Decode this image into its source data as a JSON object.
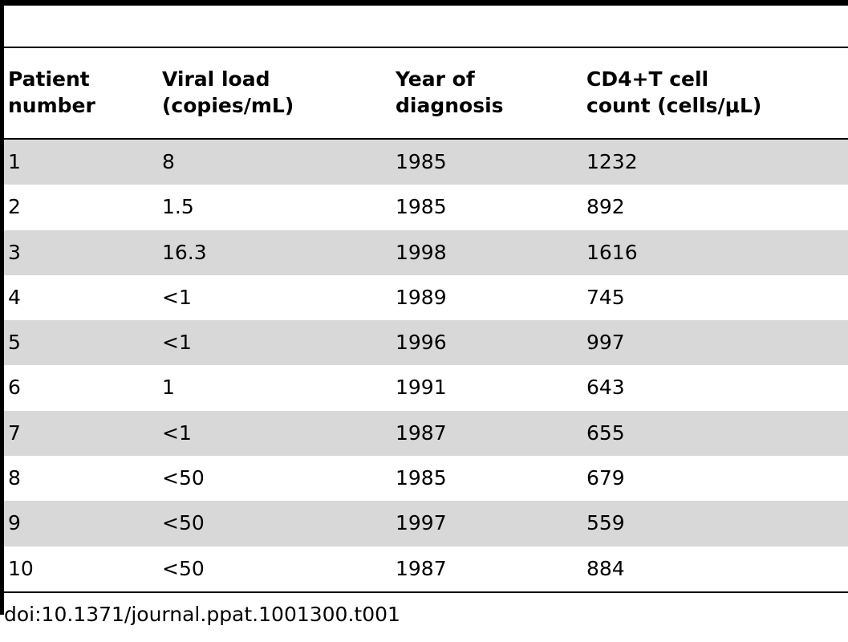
{
  "table": {
    "headers": [
      [
        "Patient",
        "number"
      ],
      [
        "Viral load",
        "(copies/mL)"
      ],
      [
        "Year of",
        "diagnosis"
      ],
      [
        "CD4+T cell",
        "count (cells/μL)"
      ]
    ],
    "rows": [
      [
        "1",
        "8",
        "1985",
        "1232"
      ],
      [
        "2",
        "1.5",
        "1985",
        "892"
      ],
      [
        "3",
        "16.3",
        "1998",
        "1616"
      ],
      [
        "4",
        "<1",
        "1989",
        "745"
      ],
      [
        "5",
        "<1",
        "1996",
        "997"
      ],
      [
        "6",
        "1",
        "1991",
        "643"
      ],
      [
        "7",
        "<1",
        "1987",
        "655"
      ],
      [
        "8",
        "<50",
        "1985",
        "679"
      ],
      [
        "9",
        "<50",
        "1997",
        "559"
      ],
      [
        "10",
        "<50",
        "1987",
        "884"
      ]
    ],
    "shade_color": "#d8d8d8"
  },
  "caption": "doi:10.1371/journal.ppat.1001300.t001"
}
